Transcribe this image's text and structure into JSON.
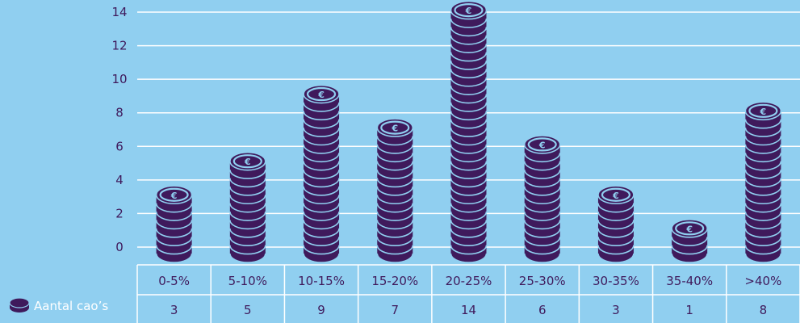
{
  "chart_data": {
    "type": "bar",
    "title": "",
    "xlabel": "",
    "ylabel": "",
    "categories": [
      "0-5%",
      "5-10%",
      "10-15%",
      "15-20%",
      "20-25%",
      "25-30%",
      "30-35%",
      "35-40%",
      ">40%"
    ],
    "series": [
      {
        "name": "Aantal cao's",
        "values": [
          3,
          5,
          9,
          7,
          14,
          6,
          3,
          1,
          8
        ]
      }
    ],
    "yticks": [
      0,
      2,
      4,
      6,
      8,
      10,
      12,
      14
    ],
    "ylim": [
      0,
      14
    ],
    "grid": true,
    "legend_position": "bottom-left",
    "marker_style": "stacked-coins",
    "coin_symbol": "€",
    "table_row_label": "Aantal cao’s",
    "table_values": [
      "3",
      "5",
      "9",
      "7",
      "14",
      "6",
      "3",
      "1",
      "8"
    ]
  },
  "colors": {
    "background": "#90cff0",
    "coin_fill": "#3f1a5c",
    "coin_outline": "#90cff0",
    "coin_symbol": "#90cff0",
    "grid": "#ffffff",
    "text": "#3f1a5c"
  }
}
